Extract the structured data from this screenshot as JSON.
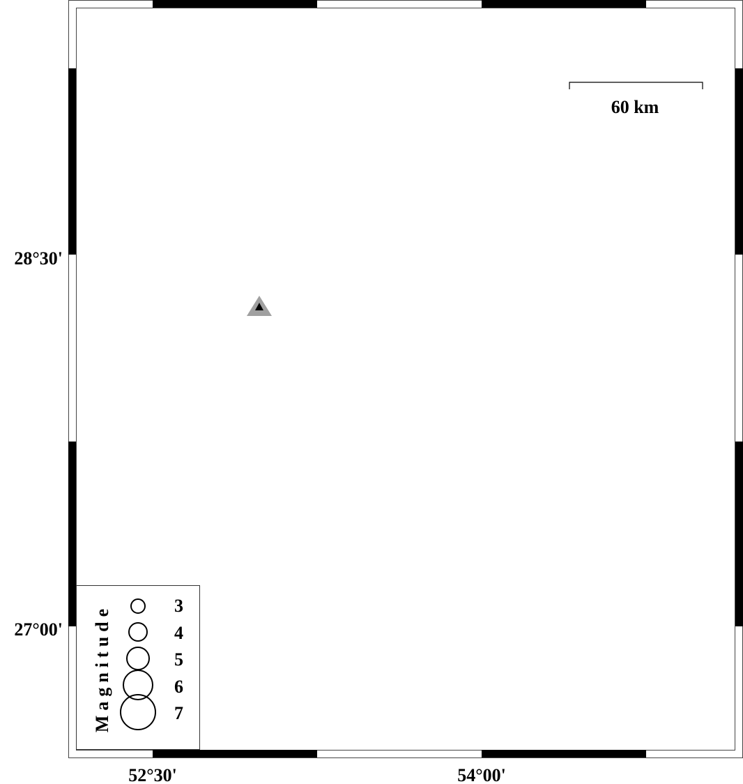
{
  "map": {
    "water_color": "#5aaffa",
    "land_color": "#ffffff",
    "lat_labels": [
      "28°30'",
      "27°00'"
    ],
    "lon_labels": [
      "52°30'",
      "54°00'"
    ],
    "scale_bar": {
      "label": "60 km"
    },
    "station_marker": {
      "icon": "triangle-icon",
      "color": "#000000",
      "halo": "#a0a0a0"
    },
    "legend": {
      "title": "Magnitude",
      "items": [
        "3",
        "4",
        "5",
        "6",
        "7"
      ]
    }
  }
}
